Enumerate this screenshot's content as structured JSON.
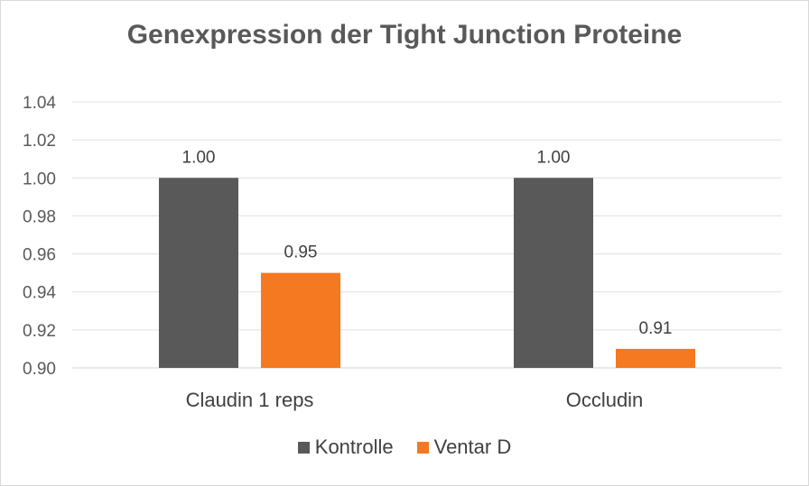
{
  "chart_data": {
    "type": "bar",
    "title": "Genexpression der Tight Junction Proteine",
    "categories": [
      "Claudin 1 reps",
      "Occludin"
    ],
    "series": [
      {
        "name": "Kontrolle",
        "values": [
          1.0,
          1.0
        ],
        "labels": [
          "1.00",
          "1.00"
        ],
        "color": "#595959"
      },
      {
        "name": "Ventar D",
        "values": [
          0.95,
          0.91
        ],
        "labels": [
          "0.95",
          "0.91"
        ],
        "color": "#f47920"
      }
    ],
    "yticks": [
      "0.90",
      "0.92",
      "0.94",
      "0.96",
      "0.98",
      "1.00",
      "1.02",
      "1.04"
    ],
    "ylim": [
      0.9,
      1.04
    ],
    "grid": true,
    "legend_position": "bottom"
  }
}
